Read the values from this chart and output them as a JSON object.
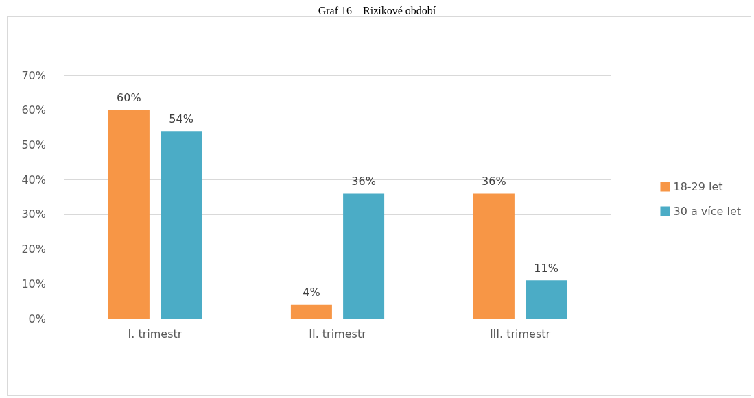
{
  "chart_data": {
    "type": "bar",
    "title": "Graf 16 – Rizikové období",
    "categories": [
      "I. trimestr",
      "II. trimestr",
      "III. trimestr"
    ],
    "series": [
      {
        "name": "18-29 let",
        "color": "#f79646",
        "values": [
          60,
          4,
          36
        ],
        "value_labels": [
          "60%",
          "4%",
          "36%"
        ]
      },
      {
        "name": "30 a více let",
        "color": "#4bacc6",
        "values": [
          54,
          36,
          11
        ],
        "value_labels": [
          "54%",
          "36%",
          "11%"
        ]
      }
    ],
    "ylim": [
      0,
      70
    ],
    "yticks": [
      {
        "value": 0,
        "label": "0%"
      },
      {
        "value": 10,
        "label": "10%"
      },
      {
        "value": 20,
        "label": "20%"
      },
      {
        "value": 30,
        "label": "30%"
      },
      {
        "value": 40,
        "label": "40%"
      },
      {
        "value": 50,
        "label": "50%"
      },
      {
        "value": 60,
        "label": "60%"
      },
      {
        "value": 70,
        "label": "70%"
      }
    ],
    "grid": "y",
    "legend": "right"
  }
}
